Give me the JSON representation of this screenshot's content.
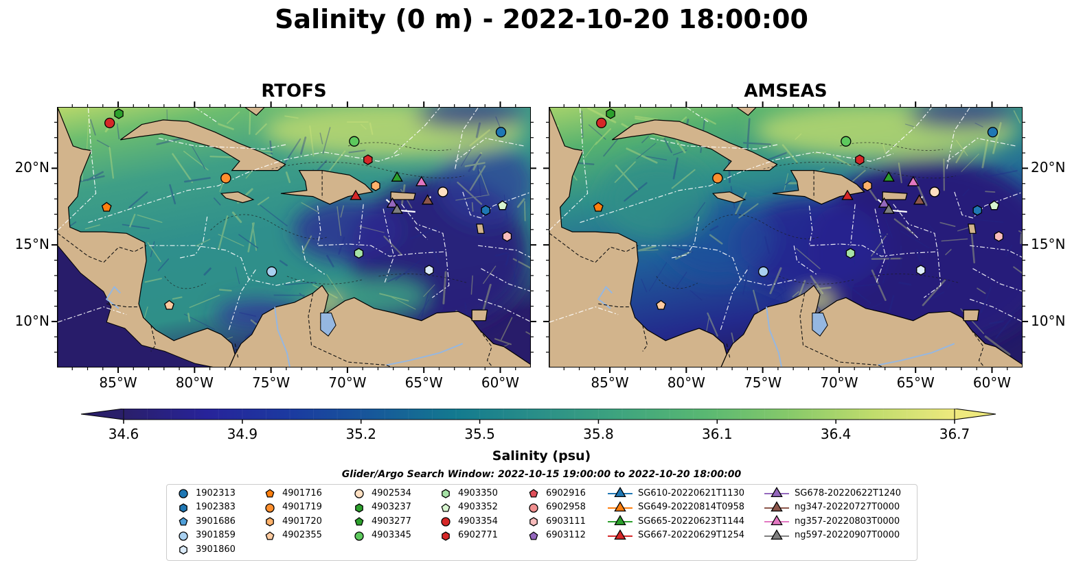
{
  "title": "Salinity (0 m) - 2022-10-20 18:00:00",
  "panels": [
    {
      "title": "RTOFS",
      "theme": "rtofs"
    },
    {
      "title": "AMSEAS",
      "theme": "amseas"
    }
  ],
  "map_extent": {
    "lon": [
      -89,
      -58
    ],
    "lat": [
      7,
      24
    ]
  },
  "axes": {
    "x_ticks": [
      {
        "lon": -85,
        "label": "85°W"
      },
      {
        "lon": -80,
        "label": "80°W"
      },
      {
        "lon": -75,
        "label": "75°W"
      },
      {
        "lon": -70,
        "label": "70°W"
      },
      {
        "lon": -65,
        "label": "65°W"
      },
      {
        "lon": -60,
        "label": "60°W"
      }
    ],
    "y_ticks": [
      {
        "lat": 20,
        "label": "20°N"
      },
      {
        "lat": 15,
        "label": "15°N"
      },
      {
        "lat": 10,
        "label": "10°N"
      }
    ]
  },
  "colorbar": {
    "label": "Salinity (psu)",
    "min": 34.6,
    "max": 36.7,
    "ticks": [
      "34.6",
      "34.9",
      "35.2",
      "35.5",
      "35.8",
      "36.1",
      "36.4",
      "36.7"
    ],
    "colors": [
      "#2a1f6a",
      "#27239a",
      "#1b3aa0",
      "#17589a",
      "#137a8f",
      "#2a8f88",
      "#3fa57e",
      "#59b872",
      "#86c96a",
      "#bfdc6c",
      "#eee97e"
    ],
    "extend": "both"
  },
  "search_window": "Glider/Argo Search Window: 2022-10-15 19:00:00 to 2022-10-20 18:00:00",
  "land_color": "#d2b48c",
  "legend": [
    {
      "label": "1902313",
      "marker": "circle",
      "color": "#1f77b4"
    },
    {
      "label": "1902383",
      "marker": "hexagon",
      "color": "#1f77b4"
    },
    {
      "label": "3901686",
      "marker": "pentagon",
      "color": "#4f9fd9"
    },
    {
      "label": "3901859",
      "marker": "circle",
      "color": "#a8d0f0"
    },
    {
      "label": "3901860",
      "marker": "hexagon",
      "color": "#dcecfa"
    },
    {
      "label": "4901716",
      "marker": "pentagon",
      "color": "#ff7f0e"
    },
    {
      "label": "4901719",
      "marker": "circle",
      "color": "#ff8f2e"
    },
    {
      "label": "4901720",
      "marker": "hexagon",
      "color": "#ffb26b"
    },
    {
      "label": "4902355",
      "marker": "pentagon",
      "color": "#ffcba0"
    },
    {
      "label": "4902534",
      "marker": "circle",
      "color": "#ffe0c2"
    },
    {
      "label": "4903237",
      "marker": "hexagon",
      "color": "#2ca02c"
    },
    {
      "label": "4903277",
      "marker": "pentagon",
      "color": "#2ca02c"
    },
    {
      "label": "4903345",
      "marker": "circle",
      "color": "#5dc95d"
    },
    {
      "label": "4903350",
      "marker": "hexagon",
      "color": "#a6e3a6"
    },
    {
      "label": "4903352",
      "marker": "pentagon",
      "color": "#d8f5d0"
    },
    {
      "label": "4903354",
      "marker": "circle",
      "color": "#d62728"
    },
    {
      "label": "6902771",
      "marker": "hexagon",
      "color": "#d62728"
    },
    {
      "label": "6902916",
      "marker": "pentagon",
      "color": "#e0505a"
    },
    {
      "label": "6902958",
      "marker": "circle",
      "color": "#f08f8f"
    },
    {
      "label": "6903111",
      "marker": "hexagon",
      "color": "#f8bcbc"
    },
    {
      "label": "6903112",
      "marker": "pentagon",
      "color": "#9467bd"
    },
    {
      "label": "SG610-20220621T1130",
      "marker": "triangle",
      "color": "#1f77b4"
    },
    {
      "label": "SG649-20220814T0958",
      "marker": "triangle",
      "color": "#ff7f0e"
    },
    {
      "label": "SG665-20220623T1144",
      "marker": "triangle",
      "color": "#2ca02c"
    },
    {
      "label": "SG667-20220629T1254",
      "marker": "triangle",
      "color": "#d62728"
    },
    {
      "label": "SG678-20220622T1240",
      "marker": "triangle",
      "color": "#9467bd"
    },
    {
      "label": "ng347-20220727T0000",
      "marker": "triangle",
      "color": "#8c564b"
    },
    {
      "label": "ng357-20220803T0000",
      "marker": "triangle",
      "color": "#e377c2"
    },
    {
      "label": "ng597-20220907T0000",
      "marker": "triangle",
      "color": "#7f7f7f"
    }
  ],
  "map_markers": [
    {
      "ref": "4903354",
      "lon": -85.6,
      "lat": 23.0
    },
    {
      "ref": "4903237",
      "lon": -85.0,
      "lat": 23.6
    },
    {
      "ref": "1902313",
      "lon": -60.0,
      "lat": 22.4
    },
    {
      "ref": "4903345",
      "lon": -69.6,
      "lat": 21.8
    },
    {
      "ref": "6902771",
      "lon": -68.7,
      "lat": 20.6
    },
    {
      "ref": "4901719",
      "lon": -78.0,
      "lat": 19.4
    },
    {
      "ref": "4901716",
      "lon": -85.8,
      "lat": 17.5
    },
    {
      "ref": "4901720",
      "lon": -68.2,
      "lat": 18.9
    },
    {
      "ref": "4902534",
      "lon": -63.8,
      "lat": 18.5
    },
    {
      "ref": "SG665-20220623T1144",
      "lon": -66.8,
      "lat": 19.4
    },
    {
      "ref": "ng357-20220803T0000",
      "lon": -65.2,
      "lat": 19.1
    },
    {
      "ref": "SG667-20220629T1254",
      "lon": -69.5,
      "lat": 18.2
    },
    {
      "ref": "SG678-20220622T1240",
      "lon": -67.1,
      "lat": 17.7
    },
    {
      "ref": "ng347-20220727T0000",
      "lon": -64.8,
      "lat": 17.9
    },
    {
      "ref": "ng597-20220907T0000",
      "lon": -66.8,
      "lat": 17.3
    },
    {
      "ref": "1902383",
      "lon": -61.0,
      "lat": 17.3
    },
    {
      "ref": "4903352",
      "lon": -59.9,
      "lat": 17.6
    },
    {
      "ref": "6903111",
      "lon": -59.6,
      "lat": 15.6
    },
    {
      "ref": "4903350",
      "lon": -69.3,
      "lat": 14.5
    },
    {
      "ref": "3901860",
      "lon": -64.7,
      "lat": 13.4
    },
    {
      "ref": "3901859",
      "lon": -75.0,
      "lat": 13.3
    },
    {
      "ref": "4902355",
      "lon": -81.7,
      "lat": 11.1
    }
  ]
}
